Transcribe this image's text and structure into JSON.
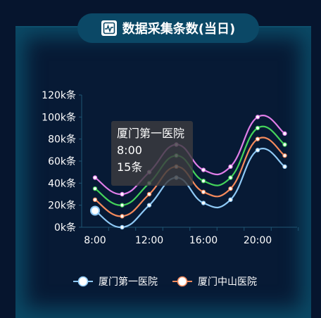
{
  "header": {
    "title": "数据采集条数(当日)",
    "icon": "pulse-chart-icon"
  },
  "tooltip": {
    "series": "厦门第一医院",
    "time": "8:00",
    "value": "15条"
  },
  "chart_data": {
    "type": "line",
    "title": "数据采集条数(当日)",
    "xlabel": "",
    "ylabel": "",
    "x": [
      "8:00",
      "10:00",
      "12:00",
      "14:00",
      "16:00",
      "18:00",
      "20:00",
      "22:00"
    ],
    "x_tick_labels": [
      "8:00",
      "12:00",
      "16:00",
      "20:00"
    ],
    "y_tick_labels": [
      "0k条",
      "20k条",
      "40k条",
      "60k条",
      "80k条",
      "100k条",
      "120k条"
    ],
    "ylim": [
      0,
      120
    ],
    "series": [
      {
        "name": "厦门第一医院",
        "color": "#8fc9f5",
        "values": [
          15,
          0,
          20,
          45,
          22,
          25,
          70,
          55
        ]
      },
      {
        "name": "厦门中山医院",
        "color": "#f58a5c",
        "values": [
          25,
          10,
          30,
          55,
          32,
          35,
          80,
          65
        ]
      },
      {
        "name": "",
        "color": "#44d35a",
        "values": [
          35,
          20,
          40,
          65,
          42,
          45,
          90,
          75
        ]
      },
      {
        "name": "",
        "color": "#e07ee8",
        "values": [
          45,
          30,
          50,
          75,
          52,
          55,
          100,
          85
        ]
      }
    ],
    "legend": "bottom",
    "grid": false
  }
}
